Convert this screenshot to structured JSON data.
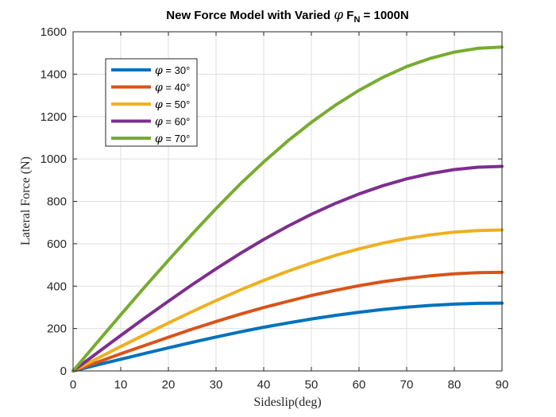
{
  "chart_data": {
    "type": "line",
    "title_prefix": "New Force Model with Varied ",
    "title_symbol": "φ",
    "title_mid": " F",
    "title_sub": "N",
    "title_suffix": " = 1000N",
    "xlabel": "Sideslip(deg)",
    "ylabel": "Lateral Force (N)",
    "xlim": [
      0,
      90
    ],
    "ylim": [
      0,
      1600
    ],
    "xticks": [
      0,
      10,
      20,
      30,
      40,
      50,
      60,
      70,
      80,
      90
    ],
    "yticks": [
      0,
      200,
      400,
      600,
      800,
      1000,
      1200,
      1400,
      1600
    ],
    "grid": true,
    "legend_position": "top-left",
    "x": [
      0,
      5,
      10,
      15,
      20,
      25,
      30,
      35,
      40,
      45,
      50,
      55,
      60,
      65,
      70,
      75,
      80,
      85,
      90
    ],
    "series": [
      {
        "name": "φ = 30°",
        "symbol": "φ",
        "label": " = 30°",
        "color": "#0072BD",
        "values": [
          0,
          28,
          55,
          82,
          109,
          135,
          160,
          184,
          206,
          226,
          245,
          262,
          277,
          290,
          301,
          309,
          315,
          319,
          320
        ]
      },
      {
        "name": "φ = 40°",
        "symbol": "φ",
        "label": " = 40°",
        "color": "#D95319",
        "values": [
          0,
          40,
          81,
          120,
          159,
          197,
          233,
          267,
          299,
          328,
          356,
          380,
          402,
          421,
          436,
          449,
          458,
          464,
          465
        ]
      },
      {
        "name": "φ = 50°",
        "symbol": "φ",
        "label": " = 50°",
        "color": "#EDB120",
        "values": [
          0,
          58,
          115,
          171,
          226,
          280,
          332,
          381,
          427,
          470,
          509,
          545,
          576,
          603,
          625,
          642,
          655,
          662,
          665
        ]
      },
      {
        "name": "φ = 60°",
        "symbol": "φ",
        "label": " = 60°",
        "color": "#7E2F8E",
        "values": [
          0,
          84,
          167,
          249,
          329,
          407,
          482,
          553,
          620,
          682,
          739,
          790,
          835,
          874,
          906,
          931,
          950,
          961,
          965
        ]
      },
      {
        "name": "φ = 70°",
        "symbol": "φ",
        "label": " = 70°",
        "color": "#77AC30",
        "values": [
          0,
          133,
          265,
          395,
          522,
          646,
          766,
          880,
          986,
          1084,
          1173,
          1253,
          1324,
          1385,
          1436,
          1475,
          1504,
          1522,
          1528
        ]
      }
    ]
  }
}
